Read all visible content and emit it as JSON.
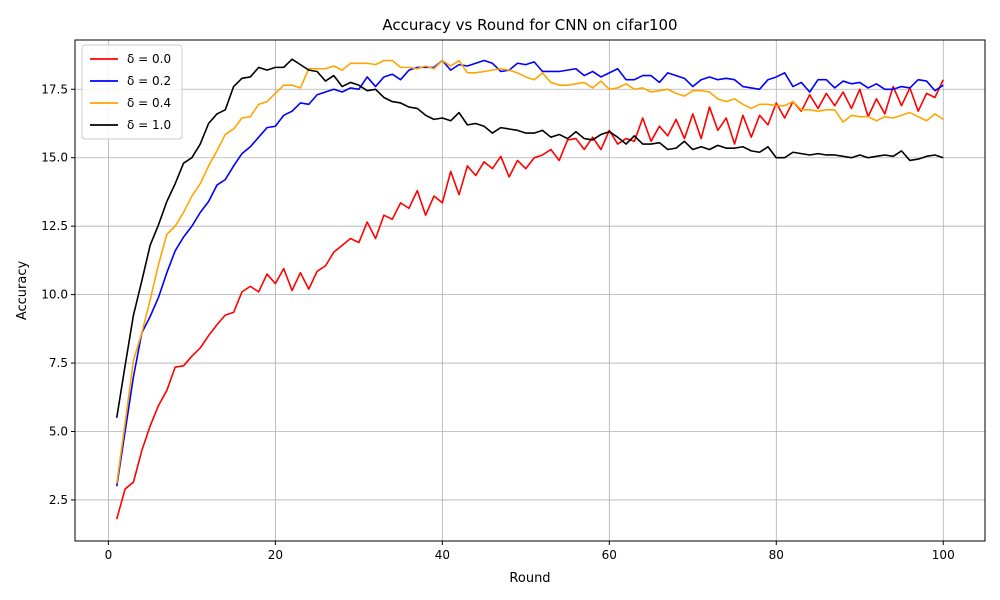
{
  "chart_data": {
    "type": "line",
    "title": "Accuracy vs Round for CNN on cifar100",
    "xlabel": "Round",
    "ylabel": "Accuracy",
    "xlim": [
      -4,
      105
    ],
    "ylim": [
      1.0,
      19.3
    ],
    "xticks": [
      0,
      20,
      40,
      60,
      80,
      100
    ],
    "yticks": [
      2.5,
      5.0,
      7.5,
      10.0,
      12.5,
      15.0,
      17.5
    ],
    "ytick_labels": [
      "2.5",
      "5.0",
      "7.5",
      "10.0",
      "12.5",
      "15.0",
      "17.5"
    ],
    "grid": true,
    "legend_position": "top-left",
    "x": [
      1,
      2,
      3,
      4,
      5,
      6,
      7,
      8,
      9,
      10,
      11,
      12,
      13,
      14,
      15,
      16,
      17,
      18,
      19,
      20,
      21,
      22,
      23,
      24,
      25,
      26,
      27,
      28,
      29,
      30,
      31,
      32,
      33,
      34,
      35,
      36,
      37,
      38,
      39,
      40,
      41,
      42,
      43,
      44,
      45,
      46,
      47,
      48,
      49,
      50,
      51,
      52,
      53,
      54,
      55,
      56,
      57,
      58,
      59,
      60,
      61,
      62,
      63,
      64,
      65,
      66,
      67,
      68,
      69,
      70,
      71,
      72,
      73,
      74,
      75,
      76,
      77,
      78,
      79,
      80,
      81,
      82,
      83,
      84,
      85,
      86,
      87,
      88,
      89,
      90,
      91,
      92,
      93,
      94,
      95,
      96,
      97,
      98,
      99,
      100
    ],
    "series": [
      {
        "name": "δ = 0.0",
        "color": "#ff0000",
        "values": [
          1.8,
          2.9,
          3.15,
          4.3,
          5.2,
          5.95,
          6.5,
          7.35,
          7.4,
          7.75,
          8.05,
          8.5,
          8.9,
          9.25,
          9.35,
          10.1,
          10.3,
          10.1,
          10.75,
          10.4,
          10.95,
          10.15,
          10.8,
          10.2,
          10.85,
          11.05,
          11.55,
          11.8,
          12.05,
          11.9,
          12.65,
          12.05,
          12.9,
          12.75,
          13.35,
          13.15,
          13.8,
          12.9,
          13.6,
          13.35,
          14.5,
          13.65,
          14.7,
          14.35,
          14.85,
          14.6,
          15.05,
          14.3,
          14.9,
          14.6,
          15.0,
          15.1,
          15.3,
          14.9,
          15.65,
          15.7,
          15.3,
          15.75,
          15.3,
          16.0,
          15.5,
          15.7,
          15.6,
          16.45,
          15.6,
          16.15,
          15.8,
          16.4,
          15.7,
          16.6,
          15.7,
          16.85,
          16.0,
          16.45,
          15.5,
          16.55,
          15.75,
          16.55,
          16.2,
          17.0,
          16.45,
          17.05,
          16.7,
          17.3,
          16.8,
          17.35,
          16.9,
          17.4,
          16.8,
          17.5,
          16.5,
          17.15,
          16.6,
          17.6,
          16.9,
          17.55,
          16.7,
          17.35,
          17.2,
          17.85
        ]
      },
      {
        "name": "δ = 0.2",
        "color": "#0000ff",
        "values": [
          3.0,
          5.0,
          7.0,
          8.6,
          9.2,
          9.9,
          10.8,
          11.6,
          12.1,
          12.5,
          13.0,
          13.4,
          14.0,
          14.2,
          14.7,
          15.15,
          15.4,
          15.75,
          16.1,
          16.15,
          16.55,
          16.7,
          17.0,
          16.95,
          17.3,
          17.4,
          17.5,
          17.4,
          17.55,
          17.5,
          17.95,
          17.6,
          17.95,
          18.05,
          17.85,
          18.2,
          18.3,
          18.3,
          18.3,
          18.55,
          18.2,
          18.4,
          18.35,
          18.45,
          18.55,
          18.45,
          18.15,
          18.2,
          18.45,
          18.4,
          18.5,
          18.15,
          18.15,
          18.15,
          18.2,
          18.25,
          18.0,
          18.15,
          17.95,
          18.1,
          18.25,
          17.85,
          17.85,
          18.0,
          18.0,
          17.75,
          18.1,
          18.0,
          17.9,
          17.6,
          17.85,
          17.95,
          17.85,
          17.9,
          17.85,
          17.6,
          17.55,
          17.5,
          17.85,
          17.95,
          18.1,
          17.6,
          17.75,
          17.4,
          17.85,
          17.85,
          17.55,
          17.8,
          17.7,
          17.75,
          17.55,
          17.7,
          17.5,
          17.5,
          17.6,
          17.55,
          17.85,
          17.8,
          17.45,
          17.65
        ]
      },
      {
        "name": "δ = 0.4",
        "color": "#ffa500",
        "values": [
          3.1,
          5.3,
          7.6,
          8.6,
          9.8,
          11.1,
          12.2,
          12.5,
          13.0,
          13.6,
          14.05,
          14.7,
          15.25,
          15.85,
          16.05,
          16.45,
          16.5,
          16.95,
          17.05,
          17.35,
          17.65,
          17.65,
          17.55,
          18.25,
          18.25,
          18.25,
          18.35,
          18.2,
          18.45,
          18.45,
          18.45,
          18.4,
          18.55,
          18.55,
          18.3,
          18.3,
          18.25,
          18.35,
          18.25,
          18.55,
          18.35,
          18.55,
          18.1,
          18.1,
          18.15,
          18.2,
          18.25,
          18.2,
          18.1,
          17.95,
          17.85,
          18.1,
          17.75,
          17.65,
          17.65,
          17.7,
          17.75,
          17.55,
          17.8,
          17.5,
          17.55,
          17.7,
          17.5,
          17.55,
          17.4,
          17.45,
          17.5,
          17.35,
          17.25,
          17.45,
          17.45,
          17.4,
          17.15,
          17.05,
          17.15,
          16.95,
          16.8,
          16.95,
          16.95,
          16.9,
          16.9,
          17.05,
          16.75,
          16.75,
          16.7,
          16.75,
          16.75,
          16.3,
          16.55,
          16.5,
          16.5,
          16.35,
          16.5,
          16.45,
          16.55,
          16.65,
          16.5,
          16.35,
          16.6,
          16.4
        ]
      },
      {
        "name": "δ = 1.0",
        "color": "#000000",
        "values": [
          5.5,
          7.4,
          9.25,
          10.5,
          11.8,
          12.55,
          13.4,
          14.05,
          14.8,
          15.0,
          15.5,
          16.25,
          16.6,
          16.75,
          17.6,
          17.9,
          17.95,
          18.3,
          18.2,
          18.3,
          18.3,
          18.6,
          18.4,
          18.2,
          18.15,
          17.8,
          18.0,
          17.6,
          17.75,
          17.65,
          17.45,
          17.5,
          17.2,
          17.05,
          17.0,
          16.85,
          16.8,
          16.55,
          16.4,
          16.45,
          16.35,
          16.65,
          16.2,
          16.25,
          16.15,
          15.9,
          16.1,
          16.05,
          16.0,
          15.9,
          15.9,
          16.0,
          15.75,
          15.85,
          15.7,
          15.95,
          15.7,
          15.65,
          15.85,
          15.95,
          15.75,
          15.5,
          15.8,
          15.5,
          15.5,
          15.55,
          15.3,
          15.35,
          15.6,
          15.3,
          15.4,
          15.3,
          15.45,
          15.35,
          15.35,
          15.4,
          15.25,
          15.2,
          15.4,
          15.0,
          15.0,
          15.2,
          15.15,
          15.1,
          15.15,
          15.1,
          15.1,
          15.05,
          15.0,
          15.1,
          15.0,
          15.05,
          15.1,
          15.05,
          15.25,
          14.9,
          14.95,
          15.05,
          15.1,
          15.0
        ]
      }
    ]
  }
}
